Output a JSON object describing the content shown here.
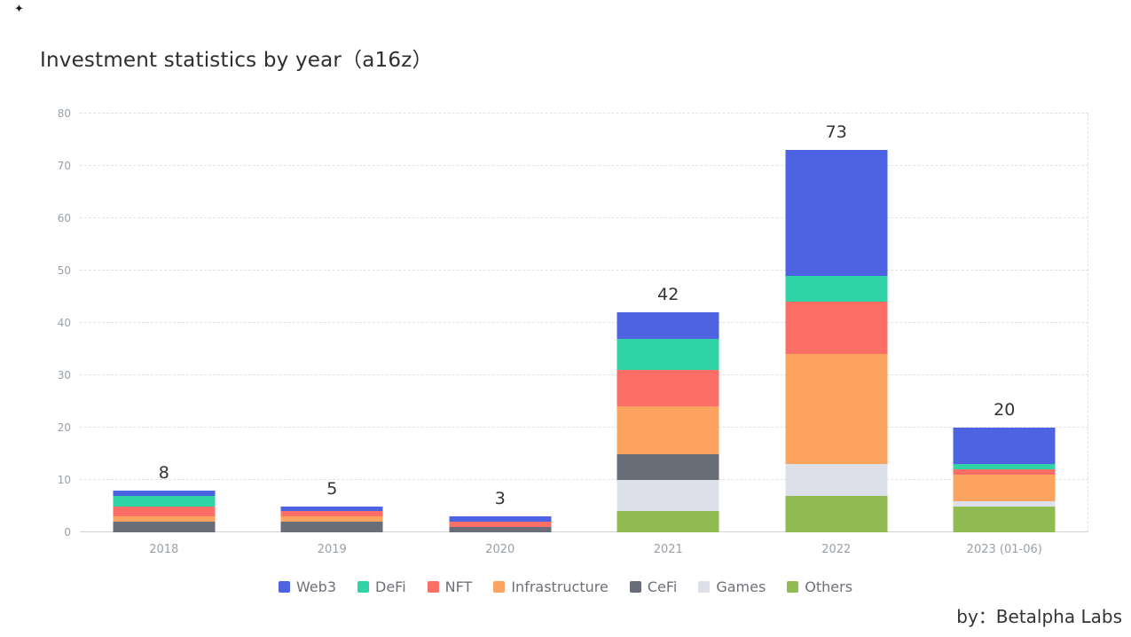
{
  "title": "Investment statistics by year（a16z）",
  "attribution": "by：Betalpha Labs",
  "corner_mark": "✦",
  "chart_data": {
    "type": "bar",
    "stacked": true,
    "title": "Investment statistics by year（a16z）",
    "categories": [
      "2018",
      "2019",
      "2020",
      "2021",
      "2022",
      "2023 (01-06)"
    ],
    "totals": [
      8,
      5,
      3,
      42,
      73,
      20
    ],
    "series": [
      {
        "name": "Web3",
        "color": "#4d63e2",
        "values": [
          1,
          1,
          1,
          5,
          24,
          7
        ]
      },
      {
        "name": "DeFi",
        "color": "#2fd3a6",
        "values": [
          2,
          0,
          0,
          6,
          5,
          1
        ]
      },
      {
        "name": "NFT",
        "color": "#fb6f66",
        "values": [
          2,
          1,
          1,
          7,
          10,
          1
        ]
      },
      {
        "name": "Infrastructure",
        "color": "#fba35f",
        "values": [
          1,
          1,
          0,
          9,
          21,
          5
        ]
      },
      {
        "name": "CeFi",
        "color": "#696d78",
        "values": [
          2,
          2,
          1,
          5,
          0,
          0
        ]
      },
      {
        "name": "Games",
        "color": "#dde0e8",
        "values": [
          0,
          0,
          0,
          6,
          6,
          1
        ]
      },
      {
        "name": "Others",
        "color": "#8fbb51",
        "values": [
          0,
          0,
          0,
          4,
          7,
          5
        ]
      }
    ],
    "xlabel": "",
    "ylabel": "",
    "ylim": [
      0,
      80
    ],
    "ytick_step": 10,
    "grid": "dashed-horizontal",
    "legend_position": "bottom",
    "stack_order_bottom_to_top": [
      "Others",
      "Games",
      "CeFi",
      "Infrastructure",
      "NFT",
      "DeFi",
      "Web3"
    ]
  }
}
